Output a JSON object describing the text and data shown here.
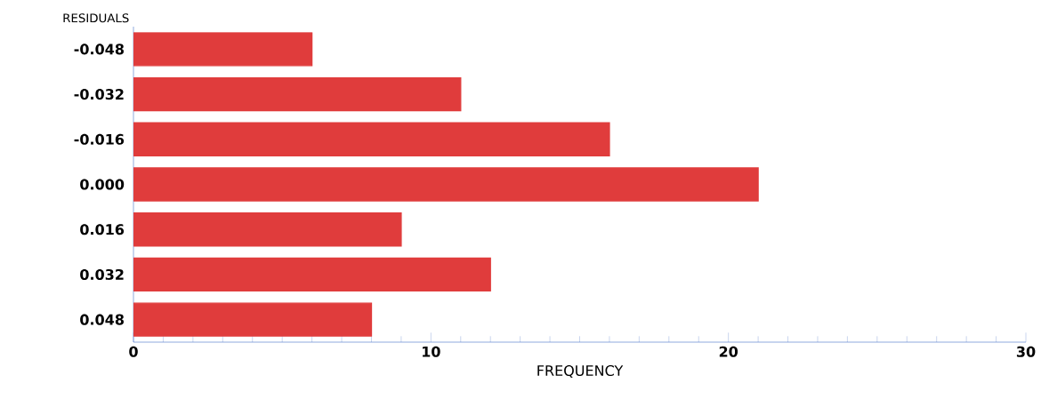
{
  "chart_data": {
    "type": "bar",
    "orientation": "horizontal",
    "ylabel": "RESIDUALS",
    "xlabel": "FREQUENCY",
    "categories": [
      "-0.048",
      "-0.032",
      "-0.016",
      "0.000",
      "0.016",
      "0.032",
      "0.048"
    ],
    "values": [
      6,
      11,
      16,
      21,
      9,
      12,
      8
    ],
    "color": "#e03c3c",
    "xlim": [
      0,
      30
    ],
    "xticks": [
      0,
      10,
      20,
      30
    ]
  }
}
